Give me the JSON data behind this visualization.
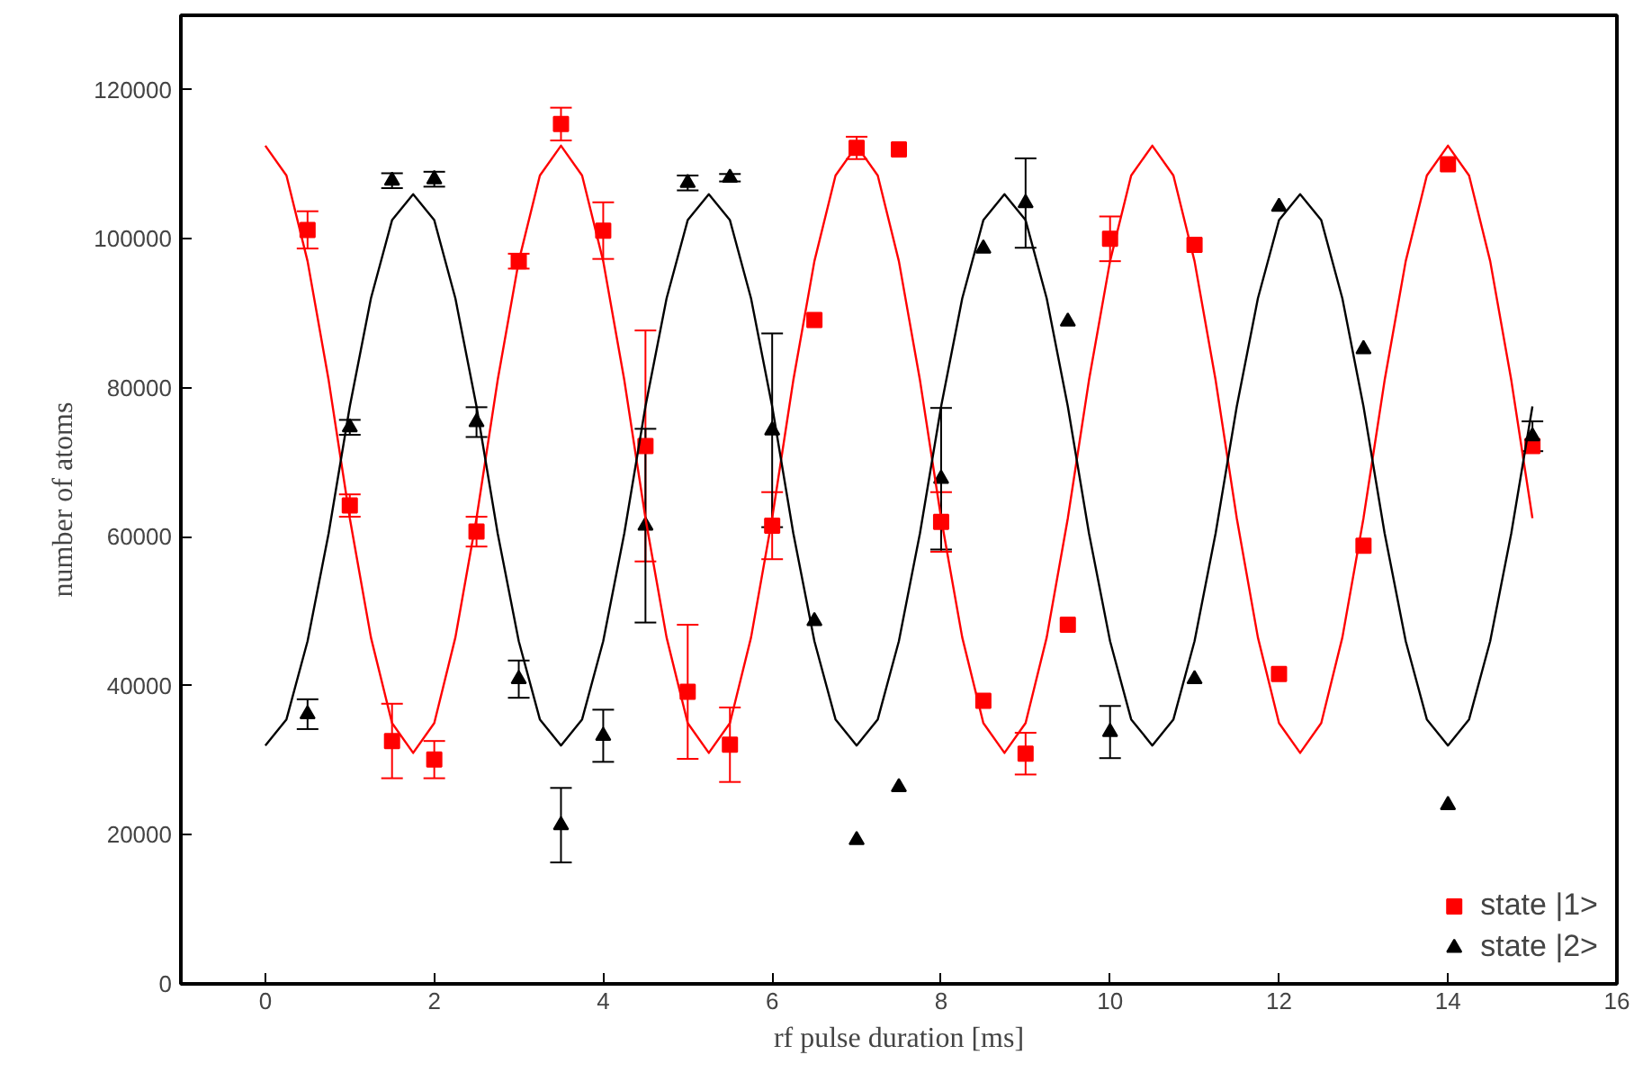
{
  "chart_data": {
    "type": "scatter",
    "xlabel": "rf pulse duration [ms]",
    "ylabel": "number of atoms",
    "xlim": [
      -1,
      16
    ],
    "ylim": [
      0,
      130000
    ],
    "xticks": [
      0,
      2,
      4,
      6,
      8,
      10,
      12,
      14,
      16
    ],
    "yticks": [
      0,
      20000,
      40000,
      60000,
      80000,
      100000,
      120000
    ],
    "grid": false,
    "legend": "bottom right",
    "series": [
      {
        "name": "state |1>",
        "color": "#ff0000",
        "marker": "square",
        "x": [
          0.5,
          1,
          1.5,
          2,
          2.5,
          3,
          3.5,
          4,
          4.5,
          5,
          5.5,
          6,
          6.5,
          7,
          7.5,
          8,
          8.5,
          9,
          9.5,
          10,
          11,
          12,
          13,
          14,
          15
        ],
        "values": [
          101200,
          64200,
          32600,
          30100,
          60700,
          97000,
          115400,
          101100,
          72200,
          39200,
          32100,
          61500,
          89100,
          112200,
          112000,
          62000,
          38000,
          30900,
          48200,
          100000,
          99200,
          41600,
          58800,
          110000,
          72200
        ],
        "errors": [
          2500,
          1500,
          5000,
          2500,
          2000,
          1000,
          2200,
          3800,
          15500,
          9000,
          5000,
          4500,
          null,
          1500,
          null,
          4000,
          null,
          2800,
          null,
          3000,
          null,
          null,
          null,
          null,
          null
        ]
      },
      {
        "name": "state |2>",
        "color": "#000000",
        "marker": "triangle",
        "x": [
          0.5,
          1,
          1.5,
          2,
          2.5,
          3,
          3.5,
          4,
          4.5,
          5,
          5.5,
          6,
          6.5,
          7,
          7.5,
          8,
          8.5,
          9,
          9.5,
          10,
          11,
          12,
          13,
          14,
          15
        ],
        "values": [
          36200,
          74700,
          107800,
          108000,
          75400,
          40900,
          21300,
          33300,
          61500,
          107500,
          108200,
          74300,
          48700,
          19300,
          26400,
          67800,
          98700,
          104800,
          88900,
          33800,
          40900,
          104300,
          85200,
          24000,
          73500
        ],
        "errors": [
          2000,
          1000,
          1000,
          1000,
          2000,
          2500,
          5000,
          3500,
          13000,
          1000,
          500,
          13000,
          null,
          null,
          null,
          9500,
          null,
          6000,
          null,
          3500,
          null,
          null,
          null,
          null,
          2000
        ]
      },
      {
        "type": "line",
        "color": "#ff0000",
        "x": [
          0,
          0.25,
          0.5,
          0.75,
          1,
          1.25,
          1.5,
          1.75,
          2,
          2.25,
          2.5,
          2.75,
          3,
          3.25,
          3.5,
          3.75,
          4,
          4.25,
          4.5,
          4.75,
          5,
          5.25,
          5.5,
          5.75,
          6,
          6.25,
          6.5,
          6.75,
          7,
          7.25,
          7.5,
          7.75,
          8,
          8.25,
          8.5,
          8.75,
          9,
          9.25,
          9.5,
          9.75,
          10,
          10.25,
          10.5,
          10.75,
          11,
          11.25,
          11.5,
          11.75,
          12,
          12.25,
          12.5,
          12.75,
          13,
          13.25,
          13.5,
          13.75,
          14,
          14.25,
          14.5,
          14.75,
          15
        ],
        "values": [
          112500,
          108500,
          97000,
          81000,
          62500,
          46500,
          35000,
          31000,
          35000,
          46500,
          62500,
          81000,
          97000,
          108500,
          112500,
          108500,
          97000,
          81000,
          62500,
          46500,
          35000,
          31000,
          35000,
          46500,
          62500,
          81000,
          97000,
          108500,
          112500,
          108500,
          97000,
          81000,
          62500,
          46500,
          35000,
          31000,
          35000,
          46500,
          62500,
          81000,
          97000,
          108500,
          112500,
          108500,
          97000,
          81000,
          62500,
          46500,
          35000,
          31000,
          35000,
          46500,
          62500,
          81000,
          97000,
          108500,
          112500,
          108500,
          97000,
          81000,
          62500
        ]
      },
      {
        "type": "line",
        "color": "#000000",
        "x": [
          0,
          0.25,
          0.5,
          0.75,
          1,
          1.25,
          1.5,
          1.75,
          2,
          2.25,
          2.5,
          2.75,
          3,
          3.25,
          3.5,
          3.75,
          4,
          4.25,
          4.5,
          4.75,
          5,
          5.25,
          5.5,
          5.75,
          6,
          6.25,
          6.5,
          6.75,
          7,
          7.25,
          7.5,
          7.75,
          8,
          8.25,
          8.5,
          8.75,
          9,
          9.25,
          9.5,
          9.75,
          10,
          10.25,
          10.5,
          10.75,
          11,
          11.25,
          11.5,
          11.75,
          12,
          12.25,
          12.5,
          12.75,
          13,
          13.25,
          13.5,
          13.75,
          14,
          14.25,
          14.5,
          14.75,
          15
        ],
        "values": [
          32000,
          35500,
          46000,
          60500,
          77500,
          92000,
          102500,
          106000,
          102500,
          92000,
          77500,
          60500,
          46000,
          35500,
          32000,
          35500,
          46000,
          60500,
          77500,
          92000,
          102500,
          106000,
          102500,
          92000,
          77500,
          60500,
          46000,
          35500,
          32000,
          35500,
          46000,
          60500,
          77500,
          92000,
          102500,
          106000,
          102500,
          92000,
          77500,
          60500,
          46000,
          35500,
          32000,
          35500,
          46000,
          60500,
          77500,
          92000,
          102500,
          106000,
          102500,
          92000,
          77500,
          60500,
          46000,
          35500,
          32000,
          35500,
          46000,
          60500,
          77500
        ]
      }
    ]
  }
}
